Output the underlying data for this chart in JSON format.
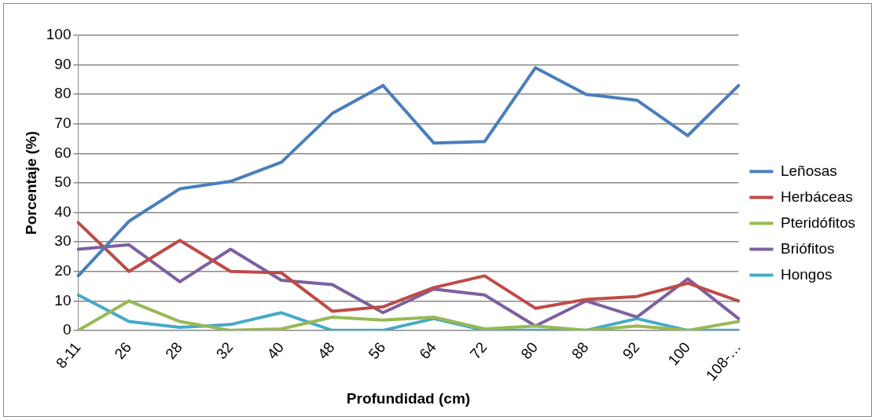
{
  "chart_data": {
    "type": "line",
    "xlabel": "Profundidad (cm)",
    "ylabel": "Porcentaje (%)",
    "categories": [
      "8-11",
      "26",
      "28",
      "32",
      "40",
      "48",
      "56",
      "64",
      "72",
      "80",
      "88",
      "92",
      "100",
      "108-…"
    ],
    "ylim": [
      0,
      100
    ],
    "yticks": [
      0,
      10,
      20,
      30,
      40,
      50,
      60,
      70,
      80,
      90,
      100
    ],
    "grid": "y",
    "legend": "right",
    "marker": "none",
    "line_style": "solid",
    "series": [
      {
        "name": "Leñosas",
        "color": "#4a7ebb",
        "values": [
          18.5,
          37,
          48,
          50.5,
          57,
          73.5,
          83,
          63.5,
          64,
          89,
          80,
          78,
          66,
          83
        ]
      },
      {
        "name": "Herbáceas",
        "color": "#be4b48",
        "values": [
          36.5,
          20,
          30.5,
          20,
          19.5,
          6.5,
          8,
          14.5,
          18.5,
          7.5,
          10.5,
          11.5,
          16,
          10
        ]
      },
      {
        "name": "Pteridófitos",
        "color": "#98b954",
        "values": [
          0,
          10,
          3,
          0,
          0.5,
          4.5,
          3.5,
          4.5,
          0.5,
          1.5,
          0,
          1.5,
          0,
          3
        ]
      },
      {
        "name": "Briófitos",
        "color": "#7d60a0",
        "values": [
          27.5,
          29,
          16.5,
          27.5,
          17,
          15.5,
          6,
          14,
          12,
          1.5,
          10,
          4.5,
          17.5,
          4
        ]
      },
      {
        "name": "Hongos",
        "color": "#46aac5",
        "values": [
          12,
          3,
          1,
          2,
          6,
          0,
          0,
          4,
          0,
          0,
          0,
          4,
          0,
          0
        ]
      }
    ]
  }
}
